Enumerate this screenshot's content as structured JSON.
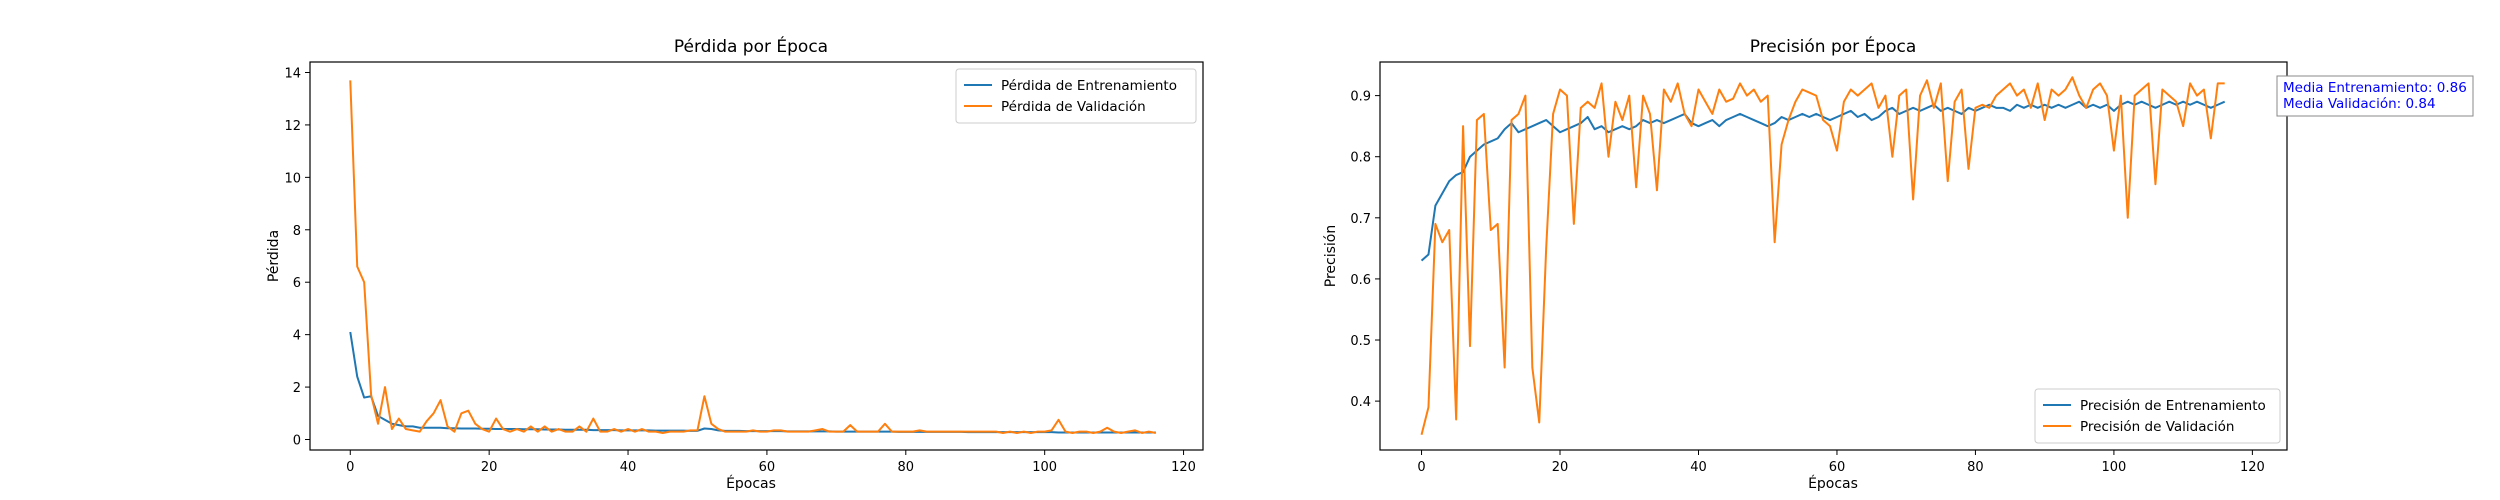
{
  "chart_data": [
    {
      "type": "line",
      "title": "Pérdida por Época",
      "xlabel": "Épocas",
      "ylabel": "Pérdida",
      "xlim": [
        -5.8,
        122.8
      ],
      "ylim": [
        -0.4,
        14.4
      ],
      "xticks": [
        0,
        20,
        40,
        60,
        80,
        100,
        120
      ],
      "yticks": [
        0,
        2,
        4,
        6,
        8,
        10,
        12,
        14
      ],
      "legend_position": "upper right",
      "grid": false,
      "x_start": 0,
      "series": [
        {
          "name": "Pérdida de Entrenamiento",
          "color": "#1f77b4",
          "values": [
            4.1,
            2.4,
            1.6,
            1.65,
            0.9,
            0.75,
            0.6,
            0.55,
            0.5,
            0.5,
            0.45,
            0.45,
            0.45,
            0.45,
            0.43,
            0.43,
            0.42,
            0.42,
            0.42,
            0.41,
            0.41,
            0.4,
            0.4,
            0.4,
            0.4,
            0.39,
            0.39,
            0.39,
            0.38,
            0.38,
            0.38,
            0.37,
            0.37,
            0.37,
            0.37,
            0.36,
            0.36,
            0.36,
            0.36,
            0.35,
            0.35,
            0.35,
            0.35,
            0.35,
            0.34,
            0.34,
            0.34,
            0.34,
            0.34,
            0.33,
            0.33,
            0.42,
            0.4,
            0.35,
            0.33,
            0.33,
            0.33,
            0.32,
            0.32,
            0.32,
            0.32,
            0.32,
            0.32,
            0.31,
            0.31,
            0.31,
            0.31,
            0.31,
            0.31,
            0.31,
            0.3,
            0.3,
            0.3,
            0.3,
            0.3,
            0.3,
            0.3,
            0.3,
            0.3,
            0.29,
            0.29,
            0.29,
            0.29,
            0.29,
            0.29,
            0.29,
            0.29,
            0.29,
            0.29,
            0.28,
            0.28,
            0.28,
            0.28,
            0.28,
            0.28,
            0.28,
            0.28,
            0.28,
            0.28,
            0.28,
            0.28,
            0.28,
            0.27,
            0.27,
            0.27,
            0.27,
            0.27,
            0.27,
            0.27,
            0.27,
            0.27,
            0.27,
            0.27,
            0.27,
            0.27,
            0.27,
            0.27
          ]
        },
        {
          "name": "Pérdida de Validación",
          "color": "#ff7f0e",
          "values": [
            13.7,
            6.6,
            6.0,
            1.7,
            0.6,
            2.0,
            0.4,
            0.8,
            0.4,
            0.35,
            0.3,
            0.7,
            1.0,
            1.5,
            0.5,
            0.3,
            1.0,
            1.1,
            0.6,
            0.4,
            0.3,
            0.8,
            0.4,
            0.3,
            0.4,
            0.3,
            0.5,
            0.3,
            0.5,
            0.3,
            0.4,
            0.3,
            0.3,
            0.5,
            0.3,
            0.8,
            0.3,
            0.3,
            0.4,
            0.3,
            0.4,
            0.3,
            0.4,
            0.3,
            0.3,
            0.25,
            0.3,
            0.3,
            0.3,
            0.35,
            0.35,
            1.65,
            0.6,
            0.4,
            0.3,
            0.3,
            0.3,
            0.3,
            0.35,
            0.3,
            0.3,
            0.35,
            0.35,
            0.3,
            0.3,
            0.3,
            0.3,
            0.35,
            0.4,
            0.3,
            0.3,
            0.3,
            0.55,
            0.3,
            0.3,
            0.3,
            0.3,
            0.6,
            0.3,
            0.3,
            0.3,
            0.3,
            0.35,
            0.3,
            0.3,
            0.3,
            0.3,
            0.3,
            0.3,
            0.3,
            0.3,
            0.3,
            0.3,
            0.3,
            0.25,
            0.3,
            0.25,
            0.3,
            0.25,
            0.3,
            0.3,
            0.35,
            0.75,
            0.3,
            0.25,
            0.3,
            0.3,
            0.25,
            0.3,
            0.45,
            0.3,
            0.25,
            0.3,
            0.35,
            0.25,
            0.3,
            0.25
          ]
        }
      ]
    },
    {
      "type": "line",
      "title": "Precisión por Época",
      "xlabel": "Épocas",
      "ylabel": "Precisión",
      "xlim": [
        -6.0,
        125.0
      ],
      "ylim": [
        0.32,
        0.955
      ],
      "xticks": [
        0,
        20,
        40,
        60,
        80,
        100,
        120
      ],
      "yticks": [
        0.4,
        0.5,
        0.6,
        0.7,
        0.8,
        0.9
      ],
      "legend_position": "lower right",
      "grid": false,
      "x_start": 0,
      "annotation": {
        "lines": [
          "Media Entrenamiento: 0.86",
          "Media Validación: 0.84"
        ],
        "color": "#0000ff"
      },
      "series": [
        {
          "name": "Precisión de Entrenamiento",
          "color": "#1f77b4",
          "values": [
            0.63,
            0.64,
            0.72,
            0.74,
            0.76,
            0.77,
            0.775,
            0.8,
            0.81,
            0.82,
            0.825,
            0.83,
            0.845,
            0.855,
            0.84,
            0.845,
            0.85,
            0.855,
            0.86,
            0.85,
            0.84,
            0.845,
            0.85,
            0.855,
            0.865,
            0.845,
            0.85,
            0.84,
            0.845,
            0.85,
            0.845,
            0.85,
            0.86,
            0.855,
            0.86,
            0.855,
            0.86,
            0.865,
            0.87,
            0.855,
            0.85,
            0.855,
            0.86,
            0.85,
            0.86,
            0.865,
            0.87,
            0.865,
            0.86,
            0.855,
            0.85,
            0.855,
            0.865,
            0.86,
            0.865,
            0.87,
            0.865,
            0.87,
            0.865,
            0.86,
            0.865,
            0.87,
            0.875,
            0.865,
            0.87,
            0.86,
            0.865,
            0.875,
            0.88,
            0.87,
            0.875,
            0.88,
            0.875,
            0.88,
            0.885,
            0.875,
            0.88,
            0.875,
            0.87,
            0.88,
            0.875,
            0.88,
            0.885,
            0.88,
            0.88,
            0.875,
            0.885,
            0.88,
            0.885,
            0.88,
            0.885,
            0.88,
            0.885,
            0.88,
            0.885,
            0.89,
            0.88,
            0.885,
            0.88,
            0.885,
            0.875,
            0.885,
            0.89,
            0.885,
            0.89,
            0.885,
            0.88,
            0.885,
            0.89,
            0.885,
            0.89,
            0.885,
            0.89,
            0.885,
            0.88,
            0.885,
            0.89
          ]
        },
        {
          "name": "Precisión de Validación",
          "color": "#ff7f0e",
          "values": [
            0.345,
            0.39,
            0.69,
            0.66,
            0.68,
            0.37,
            0.85,
            0.49,
            0.86,
            0.87,
            0.68,
            0.69,
            0.455,
            0.86,
            0.87,
            0.9,
            0.455,
            0.365,
            0.65,
            0.87,
            0.91,
            0.9,
            0.69,
            0.88,
            0.89,
            0.88,
            0.92,
            0.8,
            0.89,
            0.86,
            0.9,
            0.75,
            0.9,
            0.87,
            0.745,
            0.91,
            0.89,
            0.92,
            0.87,
            0.85,
            0.91,
            0.89,
            0.87,
            0.91,
            0.89,
            0.895,
            0.92,
            0.9,
            0.91,
            0.89,
            0.9,
            0.66,
            0.82,
            0.86,
            0.89,
            0.91,
            0.905,
            0.9,
            0.86,
            0.85,
            0.81,
            0.89,
            0.91,
            0.9,
            0.91,
            0.92,
            0.88,
            0.9,
            0.8,
            0.9,
            0.91,
            0.73,
            0.9,
            0.925,
            0.88,
            0.92,
            0.76,
            0.89,
            0.91,
            0.78,
            0.88,
            0.885,
            0.88,
            0.9,
            0.91,
            0.92,
            0.9,
            0.91,
            0.88,
            0.92,
            0.86,
            0.91,
            0.9,
            0.91,
            0.93,
            0.9,
            0.88,
            0.91,
            0.92,
            0.9,
            0.81,
            0.9,
            0.7,
            0.9,
            0.91,
            0.92,
            0.755,
            0.91,
            0.9,
            0.89,
            0.85,
            0.92,
            0.9,
            0.91,
            0.83,
            0.92,
            0.92
          ]
        }
      ]
    }
  ]
}
